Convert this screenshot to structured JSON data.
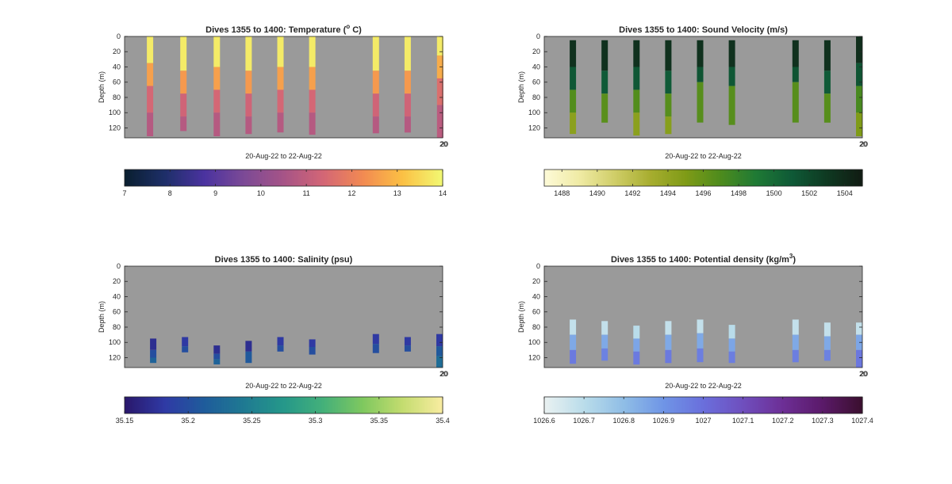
{
  "figure": {
    "background": "#ffffff",
    "axes_background": "#9a9a9a"
  },
  "chart_data": [
    {
      "type": "heatmap",
      "title_main": "Dives 1355 to 1400: Temperature (",
      "title_sup": "o",
      "title_tail": " C)",
      "ylabel": "Depth (m)",
      "xlabel": "20-Aug-22 to 22-Aug-22",
      "xtick_label": "20",
      "ylim": [
        0,
        133
      ],
      "yticks": [
        0,
        20,
        40,
        60,
        80,
        100,
        120
      ],
      "grid": false,
      "colormap": [
        "#0a1f30",
        "#1e2f69",
        "#4b33a0",
        "#7c4a96",
        "#a65487",
        "#d36676",
        "#f28a52",
        "#fbc044",
        "#f2f872"
      ],
      "colorbar": {
        "min": 7,
        "max": 14,
        "ticks": [
          7,
          8,
          9,
          10,
          11,
          12,
          13,
          14
        ]
      },
      "profiles": [
        {
          "x": 0.08,
          "top": 0,
          "bottom": 131,
          "segments": [
            [
              0,
              35,
              13.8
            ],
            [
              35,
              65,
              12.6
            ],
            [
              65,
              100,
              11.4
            ],
            [
              100,
              131,
              10.8
            ]
          ]
        },
        {
          "x": 0.185,
          "top": 0,
          "bottom": 124,
          "segments": [
            [
              0,
              45,
              13.8
            ],
            [
              45,
              75,
              12.5
            ],
            [
              75,
              105,
              11.3
            ],
            [
              105,
              124,
              10.8
            ]
          ]
        },
        {
          "x": 0.29,
          "top": 0,
          "bottom": 131,
          "segments": [
            [
              0,
              40,
              13.8
            ],
            [
              40,
              70,
              12.6
            ],
            [
              70,
              100,
              11.4
            ],
            [
              100,
              131,
              10.8
            ]
          ]
        },
        {
          "x": 0.39,
          "top": 0,
          "bottom": 128,
          "segments": [
            [
              0,
              45,
              13.8
            ],
            [
              45,
              75,
              12.5
            ],
            [
              75,
              105,
              11.3
            ],
            [
              105,
              128,
              10.8
            ]
          ]
        },
        {
          "x": 0.49,
          "top": 0,
          "bottom": 126,
          "segments": [
            [
              0,
              40,
              13.8
            ],
            [
              40,
              70,
              12.6
            ],
            [
              70,
              100,
              11.4
            ],
            [
              100,
              126,
              10.8
            ]
          ]
        },
        {
          "x": 0.59,
          "top": 0,
          "bottom": 129,
          "segments": [
            [
              0,
              40,
              13.8
            ],
            [
              40,
              70,
              12.6
            ],
            [
              70,
              100,
              11.4
            ],
            [
              100,
              129,
              10.8
            ]
          ]
        },
        {
          "x": 0.79,
          "top": 0,
          "bottom": 127,
          "segments": [
            [
              0,
              45,
              13.8
            ],
            [
              45,
              75,
              12.5
            ],
            [
              75,
              105,
              11.3
            ],
            [
              105,
              127,
              10.8
            ]
          ]
        },
        {
          "x": 0.89,
          "top": 0,
          "bottom": 126,
          "segments": [
            [
              0,
              45,
              13.8
            ],
            [
              45,
              75,
              12.5
            ],
            [
              75,
              105,
              11.3
            ],
            [
              105,
              126,
              10.8
            ]
          ]
        },
        {
          "x": 0.992,
          "top": 0,
          "bottom": 133,
          "segments": [
            [
              0,
              25,
              13.8
            ],
            [
              25,
              55,
              12.8
            ],
            [
              55,
              90,
              11.6
            ],
            [
              90,
              133,
              10.9
            ]
          ]
        }
      ]
    },
    {
      "type": "heatmap",
      "title_main": "Dives 1355 to 1400: Sound Velocity (m/s)",
      "title_sup": "",
      "title_tail": "",
      "ylabel": "Depth (m)",
      "xlabel": "20-Aug-22 to 22-Aug-22",
      "xtick_label": "20",
      "ylim": [
        0,
        133
      ],
      "yticks": [
        0,
        20,
        40,
        60,
        80,
        100,
        120
      ],
      "grid": false,
      "colormap": [
        "#fdfad7",
        "#efeaa3",
        "#cfcd67",
        "#a7ad2f",
        "#7f9b17",
        "#4d8b1d",
        "#1f7a35",
        "#0f5a37",
        "#0f3a22",
        "#111c13"
      ],
      "colorbar": {
        "min": 1487,
        "max": 1505,
        "ticks": [
          1488,
          1490,
          1492,
          1494,
          1496,
          1498,
          1500,
          1502,
          1504
        ]
      },
      "profiles": [
        {
          "x": 0.09,
          "top": 5,
          "bottom": 128,
          "segments": [
            [
              5,
              40,
              1503.6
            ],
            [
              40,
              70,
              1501.2
            ],
            [
              70,
              100,
              1496.8
            ],
            [
              100,
              128,
              1494.4
            ]
          ]
        },
        {
          "x": 0.19,
          "top": 5,
          "bottom": 113,
          "segments": [
            [
              5,
              45,
              1503.6
            ],
            [
              45,
              75,
              1501.0
            ],
            [
              75,
              113,
              1496.5
            ]
          ]
        },
        {
          "x": 0.29,
          "top": 5,
          "bottom": 130,
          "segments": [
            [
              5,
              40,
              1503.6
            ],
            [
              40,
              70,
              1501.2
            ],
            [
              70,
              100,
              1496.8
            ],
            [
              100,
              130,
              1494.4
            ]
          ]
        },
        {
          "x": 0.39,
          "top": 5,
          "bottom": 128,
          "segments": [
            [
              5,
              45,
              1503.6
            ],
            [
              45,
              75,
              1501.0
            ],
            [
              75,
              105,
              1496.6
            ],
            [
              105,
              128,
              1494.6
            ]
          ]
        },
        {
          "x": 0.49,
          "top": 5,
          "bottom": 113,
          "segments": [
            [
              5,
              40,
              1503.6
            ],
            [
              40,
              60,
              1501.4
            ],
            [
              60,
              113,
              1496.6
            ]
          ]
        },
        {
          "x": 0.59,
          "top": 5,
          "bottom": 116,
          "segments": [
            [
              5,
              40,
              1503.6
            ],
            [
              40,
              65,
              1501.2
            ],
            [
              65,
              116,
              1496.6
            ]
          ]
        },
        {
          "x": 0.79,
          "top": 5,
          "bottom": 113,
          "segments": [
            [
              5,
              40,
              1503.6
            ],
            [
              40,
              60,
              1501.4
            ],
            [
              60,
              113,
              1496.6
            ]
          ]
        },
        {
          "x": 0.89,
          "top": 5,
          "bottom": 113,
          "segments": [
            [
              5,
              45,
              1503.6
            ],
            [
              45,
              75,
              1501.0
            ],
            [
              75,
              113,
              1496.6
            ]
          ]
        },
        {
          "x": 0.99,
          "top": 0,
          "bottom": 131,
          "segments": [
            [
              0,
              35,
              1503.8
            ],
            [
              35,
              65,
              1501.4
            ],
            [
              65,
              100,
              1497.2
            ],
            [
              100,
              131,
              1495.0
            ]
          ]
        }
      ]
    },
    {
      "type": "heatmap",
      "title_main": "Dives 1355 to 1400: Salinity (psu)",
      "title_sup": "",
      "title_tail": "",
      "ylabel": "Depth (m)",
      "xlabel": "20-Aug-22 to 22-Aug-22",
      "xtick_label": "20",
      "ylim": [
        0,
        133
      ],
      "yticks": [
        0,
        20,
        40,
        60,
        80,
        100,
        120
      ],
      "grid": false,
      "colormap": [
        "#2a186c",
        "#2f3aa5",
        "#1f5c9b",
        "#1f7a92",
        "#25988a",
        "#44b07a",
        "#7fc85f",
        "#c3dc6f",
        "#f8eca0"
      ],
      "colorbar": {
        "min": 35.15,
        "max": 35.4,
        "ticks": [
          35.15,
          35.2,
          35.25,
          35.3,
          35.35,
          35.4
        ]
      },
      "profiles": [
        {
          "x": 0.09,
          "top": 95,
          "bottom": 127,
          "segments": [
            [
              95,
              110,
              35.17
            ],
            [
              110,
              120,
              35.2
            ],
            [
              120,
              127,
              35.22
            ]
          ]
        },
        {
          "x": 0.19,
          "top": 93,
          "bottom": 113,
          "segments": [
            [
              93,
              105,
              35.18
            ],
            [
              105,
              113,
              35.2
            ]
          ]
        },
        {
          "x": 0.29,
          "top": 104,
          "bottom": 129,
          "segments": [
            [
              104,
              115,
              35.17
            ],
            [
              115,
              122,
              35.2
            ],
            [
              122,
              129,
              35.22
            ]
          ]
        },
        {
          "x": 0.39,
          "top": 98,
          "bottom": 127,
          "segments": [
            [
              98,
              112,
              35.17
            ],
            [
              112,
              127,
              35.21
            ]
          ]
        },
        {
          "x": 0.49,
          "top": 93,
          "bottom": 112,
          "segments": [
            [
              93,
              104,
              35.18
            ],
            [
              104,
              112,
              35.2
            ]
          ]
        },
        {
          "x": 0.59,
          "top": 96,
          "bottom": 116,
          "segments": [
            [
              96,
              106,
              35.18
            ],
            [
              106,
              116,
              35.2
            ]
          ]
        },
        {
          "x": 0.79,
          "top": 89,
          "bottom": 114,
          "segments": [
            [
              89,
              102,
              35.18
            ],
            [
              102,
              114,
              35.2
            ]
          ]
        },
        {
          "x": 0.89,
          "top": 93,
          "bottom": 112,
          "segments": [
            [
              93,
              104,
              35.18
            ],
            [
              104,
              112,
              35.2
            ]
          ]
        },
        {
          "x": 0.99,
          "top": 89,
          "bottom": 133,
          "segments": [
            [
              89,
              105,
              35.18
            ],
            [
              105,
              118,
              35.21
            ],
            [
              118,
              133,
              35.23
            ]
          ]
        }
      ]
    },
    {
      "type": "heatmap",
      "title_main": "Dives 1355 to 1400: Potential density (kg/m",
      "title_sup": "3",
      "title_tail": ")",
      "ylabel": "Depth (m)",
      "xlabel": "20-Aug-22 to 22-Aug-22",
      "xtick_label": "20",
      "ylim": [
        0,
        133
      ],
      "yticks": [
        0,
        20,
        40,
        60,
        80,
        100,
        120
      ],
      "grid": false,
      "colormap": [
        "#e9f1f1",
        "#b9dcea",
        "#8fbde6",
        "#6f95e6",
        "#6a6fdc",
        "#6f4fbe",
        "#6d2f96",
        "#5b1a6a",
        "#3b0f2f"
      ],
      "colorbar": {
        "min": 1026.6,
        "max": 1027.4,
        "ticks": [
          1026.6,
          1026.7,
          1026.8,
          1026.9,
          1027,
          1027.1,
          1027.2,
          1027.3,
          1027.4
        ]
      },
      "profiles": [
        {
          "x": 0.09,
          "top": 70,
          "bottom": 128,
          "segments": [
            [
              70,
              90,
              1026.68
            ],
            [
              90,
              110,
              1026.85
            ],
            [
              110,
              128,
              1026.97
            ]
          ]
        },
        {
          "x": 0.19,
          "top": 72,
          "bottom": 124,
          "segments": [
            [
              72,
              90,
              1026.68
            ],
            [
              90,
              108,
              1026.85
            ],
            [
              108,
              124,
              1026.95
            ]
          ]
        },
        {
          "x": 0.29,
          "top": 78,
          "bottom": 129,
          "segments": [
            [
              78,
              95,
              1026.7
            ],
            [
              95,
              112,
              1026.86
            ],
            [
              112,
              129,
              1026.97
            ]
          ]
        },
        {
          "x": 0.39,
          "top": 72,
          "bottom": 127,
          "segments": [
            [
              72,
              90,
              1026.68
            ],
            [
              90,
              110,
              1026.85
            ],
            [
              110,
              127,
              1026.97
            ]
          ]
        },
        {
          "x": 0.49,
          "top": 70,
          "bottom": 126,
          "segments": [
            [
              70,
              88,
              1026.68
            ],
            [
              88,
              108,
              1026.85
            ],
            [
              108,
              126,
              1026.96
            ]
          ]
        },
        {
          "x": 0.59,
          "top": 77,
          "bottom": 127,
          "segments": [
            [
              77,
              95,
              1026.7
            ],
            [
              95,
              112,
              1026.86
            ],
            [
              112,
              127,
              1026.96
            ]
          ]
        },
        {
          "x": 0.79,
          "top": 70,
          "bottom": 126,
          "segments": [
            [
              70,
              90,
              1026.68
            ],
            [
              90,
              110,
              1026.85
            ],
            [
              110,
              126,
              1026.96
            ]
          ]
        },
        {
          "x": 0.89,
          "top": 74,
          "bottom": 124,
          "segments": [
            [
              74,
              92,
              1026.68
            ],
            [
              92,
              110,
              1026.85
            ],
            [
              110,
              124,
              1026.95
            ]
          ]
        },
        {
          "x": 0.99,
          "top": 74,
          "bottom": 133,
          "segments": [
            [
              74,
              90,
              1026.68
            ],
            [
              90,
              110,
              1026.86
            ],
            [
              110,
              133,
              1026.98
            ]
          ]
        }
      ]
    }
  ]
}
